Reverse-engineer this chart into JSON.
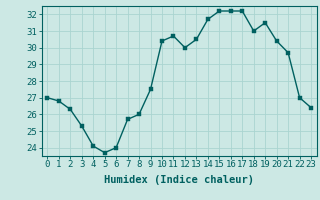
{
  "x": [
    0,
    1,
    2,
    3,
    4,
    5,
    6,
    7,
    8,
    9,
    10,
    11,
    12,
    13,
    14,
    15,
    16,
    17,
    18,
    19,
    20,
    21,
    22,
    23
  ],
  "y": [
    27.0,
    26.8,
    26.3,
    25.3,
    24.1,
    23.7,
    24.0,
    25.7,
    26.0,
    27.5,
    30.4,
    30.7,
    30.0,
    30.5,
    31.7,
    32.2,
    32.2,
    32.2,
    31.0,
    31.5,
    30.4,
    29.7,
    27.0,
    26.4
  ],
  "bg_color": "#cce8e4",
  "grid_color": "#aad4d0",
  "line_color": "#006060",
  "marker_color": "#006060",
  "xlabel": "Humidex (Indice chaleur)",
  "ylim": [
    23.5,
    32.5
  ],
  "yticks": [
    24,
    25,
    26,
    27,
    28,
    29,
    30,
    31,
    32
  ],
  "xticks": [
    0,
    1,
    2,
    3,
    4,
    5,
    6,
    7,
    8,
    9,
    10,
    11,
    12,
    13,
    14,
    15,
    16,
    17,
    18,
    19,
    20,
    21,
    22,
    23
  ],
  "xlabel_fontsize": 7.5,
  "tick_fontsize": 6.5,
  "line_width": 1.0,
  "marker_size": 2.5
}
